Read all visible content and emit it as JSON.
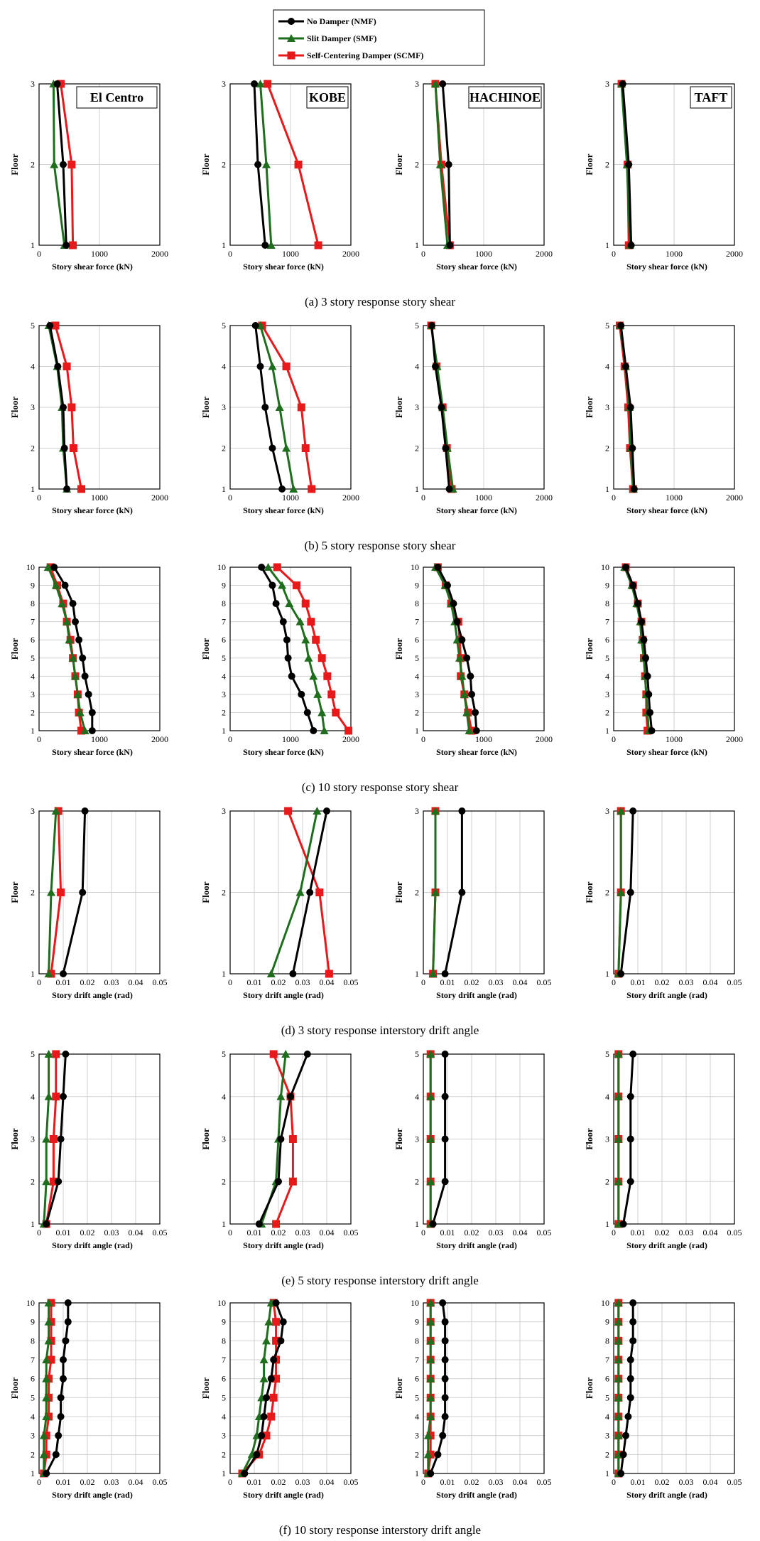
{
  "colors": {
    "NMF": "#000000",
    "SMF": "#1e6e1e",
    "SCMF": "#e8191a",
    "grid": "#d0d0d0"
  },
  "legend": [
    {
      "key": "NMF",
      "label": "No Damper (NMF)"
    },
    {
      "key": "SMF",
      "label": "Slit Damper (SMF)"
    },
    {
      "key": "SCMF",
      "label": "Self-Centering Damper (SCMF)"
    }
  ],
  "columns": [
    "El Centro",
    "KOBE",
    "HACHINOE",
    "TAFT"
  ],
  "ylabel": "Floor",
  "chart_data": [
    {
      "caption": "(a) 3 story response story shear",
      "type": "line",
      "floors": 3,
      "xlabel": "Story shear force (kN)",
      "xlim": [
        0,
        2000
      ],
      "xticks": [
        "0",
        "1000",
        "2000"
      ],
      "xtick_values": [
        0,
        1000,
        2000
      ],
      "charts": [
        {
          "title": "El Centro",
          "series": {
            "NMF": [
              450,
              400,
              300
            ],
            "SMF": [
              420,
              250,
              240
            ],
            "SCMF": [
              560,
              540,
              360
            ]
          }
        },
        {
          "title": "KOBE",
          "series": {
            "NMF": [
              580,
              460,
              400
            ],
            "SMF": [
              680,
              600,
              500
            ],
            "SCMF": [
              1460,
              1130,
              620
            ]
          }
        },
        {
          "title": "HACHINOE",
          "series": {
            "NMF": [
              440,
              420,
              320
            ],
            "SMF": [
              400,
              280,
              200
            ],
            "SCMF": [
              440,
              300,
              200
            ]
          }
        },
        {
          "title": "TAFT",
          "series": {
            "NMF": [
              290,
              250,
              150
            ],
            "SMF": [
              270,
              220,
              130
            ],
            "SCMF": [
              250,
              230,
              130
            ]
          }
        }
      ]
    },
    {
      "caption": "(b) 5 story response story shear",
      "type": "line",
      "floors": 5,
      "xlabel": "Story shear force (kN)",
      "xlim": [
        0,
        2000
      ],
      "xticks": [
        "0",
        "1000",
        "2000"
      ],
      "xtick_values": [
        0,
        1000,
        2000
      ],
      "charts": [
        {
          "title": "",
          "series": {
            "NMF": [
              460,
              420,
              400,
              310,
              180
            ],
            "SMF": [
              460,
              400,
              380,
              300,
              160
            ],
            "SCMF": [
              700,
              570,
              540,
              460,
              270
            ]
          }
        },
        {
          "title": "",
          "series": {
            "NMF": [
              860,
              700,
              580,
              500,
              420
            ],
            "SMF": [
              1050,
              930,
              820,
              700,
              500
            ],
            "SCMF": [
              1350,
              1250,
              1180,
              930,
              530
            ]
          }
        },
        {
          "title": "",
          "series": {
            "NMF": [
              430,
              370,
              300,
              200,
              140
            ],
            "SMF": [
              490,
              400,
              320,
              230,
              130
            ],
            "SCMF": [
              470,
              390,
              320,
              220,
              130
            ]
          }
        },
        {
          "title": "",
          "series": {
            "NMF": [
              340,
              310,
              280,
              200,
              120
            ],
            "SMF": [
              330,
              280,
              260,
              200,
              110
            ],
            "SCMF": [
              320,
              270,
              240,
              180,
              100
            ]
          }
        }
      ]
    },
    {
      "caption": "(c) 10 story response story shear",
      "type": "line",
      "floors": 10,
      "xlabel": "Story shear force (kN)",
      "xlim": [
        0,
        2000
      ],
      "xticks": [
        "0",
        "1000",
        "2000"
      ],
      "xtick_values": [
        0,
        1000,
        2000
      ],
      "charts": [
        {
          "title": "",
          "series": {
            "NMF": [
              880,
              880,
              820,
              760,
              720,
              660,
              600,
              560,
              430,
              250
            ],
            "SMF": [
              760,
              680,
              640,
              600,
              560,
              500,
              460,
              380,
              280,
              150
            ],
            "SCMF": [
              700,
              660,
              640,
              600,
              560,
              520,
              460,
              400,
              300,
              190
            ]
          }
        },
        {
          "title": "",
          "series": {
            "NMF": [
              1380,
              1280,
              1180,
              1020,
              960,
              940,
              880,
              760,
              700,
              520
            ],
            "SMF": [
              1560,
              1520,
              1450,
              1380,
              1300,
              1250,
              1160,
              980,
              860,
              630
            ],
            "SCMF": [
              1960,
              1750,
              1680,
              1610,
              1520,
              1420,
              1340,
              1250,
              1100,
              780
            ]
          }
        },
        {
          "title": "",
          "series": {
            "NMF": [
              880,
              860,
              800,
              780,
              720,
              640,
              560,
              500,
              400,
              240
            ],
            "SMF": [
              760,
              720,
              680,
              640,
              600,
              560,
              520,
              460,
              360,
              200
            ],
            "SCMF": [
              800,
              740,
              680,
              620,
              620,
              600,
              580,
              460,
              370,
              240
            ]
          }
        },
        {
          "title": "",
          "series": {
            "NMF": [
              630,
              600,
              580,
              560,
              530,
              500,
              460,
              400,
              320,
              200
            ],
            "SMF": [
              580,
              560,
              540,
              520,
              500,
              460,
              440,
              380,
              300,
              180
            ],
            "SCMF": [
              560,
              540,
              540,
              520,
              500,
              480,
              460,
              400,
              320,
              200
            ]
          }
        }
      ]
    },
    {
      "caption": "(d) 3 story response interstory drift angle",
      "type": "line",
      "floors": 3,
      "xlabel": "Story drift angle (rad)",
      "xlim": [
        0,
        0.05
      ],
      "xticks": [
        "0.01",
        "0.02",
        "0.03",
        "0.04",
        "0.05"
      ],
      "xtick_values": [
        0.01,
        0.02,
        0.03,
        0.04,
        0.05
      ],
      "charts": [
        {
          "title": "",
          "series": {
            "NMF": [
              0.01,
              0.018,
              0.019
            ],
            "SMF": [
              0.004,
              0.005,
              0.007
            ],
            "SCMF": [
              0.005,
              0.009,
              0.008
            ]
          }
        },
        {
          "title": "",
          "series": {
            "NMF": [
              0.026,
              0.033,
              0.04
            ],
            "SMF": [
              0.017,
              0.029,
              0.036
            ],
            "SCMF": [
              0.041,
              0.037,
              0.024
            ]
          }
        },
        {
          "title": "",
          "series": {
            "NMF": [
              0.009,
              0.016,
              0.016
            ],
            "SMF": [
              0.004,
              0.005,
              0.005
            ],
            "SCMF": [
              0.004,
              0.005,
              0.005
            ]
          }
        },
        {
          "title": "",
          "series": {
            "NMF": [
              0.003,
              0.007,
              0.008
            ],
            "SMF": [
              0.002,
              0.003,
              0.003
            ],
            "SCMF": [
              0.002,
              0.003,
              0.003
            ]
          }
        }
      ]
    },
    {
      "caption": "(e) 5 story response interstory drift angle",
      "type": "line",
      "floors": 5,
      "xlabel": "Story drift angle (rad)",
      "xlim": [
        0,
        0.05
      ],
      "xticks": [
        "0.01",
        "0.02",
        "0.03",
        "0.04",
        "0.05"
      ],
      "xtick_values": [
        0.01,
        0.02,
        0.03,
        0.04,
        0.05
      ],
      "charts": [
        {
          "title": "",
          "series": {
            "NMF": [
              0.003,
              0.008,
              0.009,
              0.01,
              0.011
            ],
            "SMF": [
              0.002,
              0.003,
              0.003,
              0.004,
              0.004
            ],
            "SCMF": [
              0.003,
              0.006,
              0.006,
              0.007,
              0.007
            ]
          }
        },
        {
          "title": "",
          "series": {
            "NMF": [
              0.012,
              0.02,
              0.021,
              0.025,
              0.032
            ],
            "SMF": [
              0.013,
              0.019,
              0.02,
              0.021,
              0.023
            ],
            "SCMF": [
              0.019,
              0.026,
              0.026,
              0.025,
              0.018
            ]
          }
        },
        {
          "title": "",
          "series": {
            "NMF": [
              0.004,
              0.009,
              0.009,
              0.009,
              0.009
            ],
            "SMF": [
              0.003,
              0.003,
              0.003,
              0.003,
              0.003
            ],
            "SCMF": [
              0.003,
              0.003,
              0.003,
              0.003,
              0.003
            ]
          }
        },
        {
          "title": "",
          "series": {
            "NMF": [
              0.004,
              0.007,
              0.007,
              0.007,
              0.008
            ],
            "SMF": [
              0.002,
              0.002,
              0.002,
              0.002,
              0.002
            ],
            "SCMF": [
              0.002,
              0.002,
              0.002,
              0.002,
              0.002
            ]
          }
        }
      ]
    },
    {
      "caption": "(f) 10 story response interstory drift angle",
      "type": "line",
      "floors": 10,
      "xlabel": "Story drift angle (rad)",
      "xlim": [
        0,
        0.05
      ],
      "xticks": [
        "0.01",
        "0.02",
        "0.03",
        "0.04",
        "0.05"
      ],
      "xtick_values": [
        0.01,
        0.02,
        0.03,
        0.04,
        0.05
      ],
      "charts": [
        {
          "title": "",
          "series": {
            "NMF": [
              0.003,
              0.007,
              0.008,
              0.009,
              0.009,
              0.01,
              0.01,
              0.011,
              0.012,
              0.012
            ],
            "SMF": [
              0.002,
              0.002,
              0.002,
              0.003,
              0.003,
              0.003,
              0.003,
              0.004,
              0.004,
              0.004
            ],
            "SCMF": [
              0.002,
              0.003,
              0.003,
              0.004,
              0.004,
              0.004,
              0.005,
              0.005,
              0.005,
              0.005
            ]
          }
        },
        {
          "title": "",
          "series": {
            "NMF": [
              0.006,
              0.011,
              0.013,
              0.014,
              0.015,
              0.017,
              0.018,
              0.021,
              0.022,
              0.019
            ],
            "SMF": [
              0.005,
              0.009,
              0.011,
              0.012,
              0.013,
              0.014,
              0.014,
              0.015,
              0.016,
              0.017
            ],
            "SCMF": [
              0.005,
              0.012,
              0.015,
              0.017,
              0.018,
              0.019,
              0.019,
              0.019,
              0.019,
              0.018
            ]
          }
        },
        {
          "title": "",
          "series": {
            "NMF": [
              0.003,
              0.006,
              0.008,
              0.009,
              0.009,
              0.009,
              0.009,
              0.009,
              0.009,
              0.008
            ],
            "SMF": [
              0.002,
              0.002,
              0.002,
              0.003,
              0.003,
              0.003,
              0.003,
              0.003,
              0.003,
              0.003
            ],
            "SCMF": [
              0.002,
              0.003,
              0.003,
              0.003,
              0.003,
              0.003,
              0.003,
              0.003,
              0.003,
              0.003
            ]
          }
        },
        {
          "title": "",
          "series": {
            "NMF": [
              0.003,
              0.004,
              0.005,
              0.006,
              0.007,
              0.007,
              0.007,
              0.008,
              0.008,
              0.008
            ],
            "SMF": [
              0.002,
              0.002,
              0.002,
              0.002,
              0.002,
              0.002,
              0.002,
              0.002,
              0.002,
              0.002
            ],
            "SCMF": [
              0.002,
              0.002,
              0.002,
              0.002,
              0.002,
              0.002,
              0.002,
              0.002,
              0.002,
              0.002
            ]
          }
        }
      ]
    }
  ]
}
